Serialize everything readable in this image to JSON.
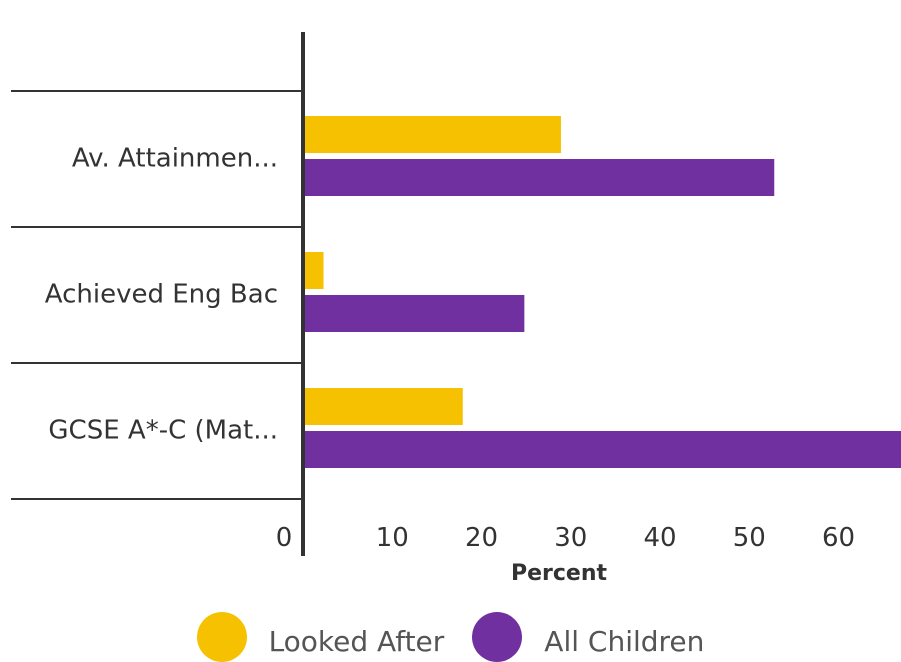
{
  "chart_data": {
    "type": "bar",
    "orientation": "horizontal",
    "categories": [
      "Av. Attainmen...",
      "Achieved Eng Bac",
      "GCSE A*-C (Mat..."
    ],
    "series": [
      {
        "name": "Looked After",
        "color": "#F5C100",
        "values": [
          28.9,
          2.3,
          17.9
        ]
      },
      {
        "name": "All Children",
        "color": "#70309F",
        "values": [
          52.8,
          24.8,
          67.0
        ]
      }
    ],
    "xlabel": "Percent",
    "xticks": [
      0,
      10,
      20,
      30,
      40,
      50,
      60
    ],
    "xlim": [
      0,
      67
    ],
    "grid": false,
    "legend_position": "bottom"
  }
}
